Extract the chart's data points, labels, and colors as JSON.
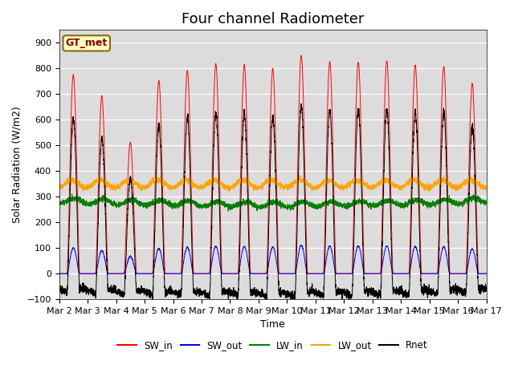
{
  "title": "Four channel Radiometer",
  "xlabel": "Time",
  "ylabel": "Solar Radiation (W/m2)",
  "label_box": "GT_met",
  "ylim": [
    -100,
    950
  ],
  "start_day": 2,
  "num_days": 15,
  "background_color": "#dcdcdc",
  "legend_entries": [
    "SW_in",
    "SW_out",
    "LW_in",
    "LW_out",
    "Rnet"
  ],
  "line_colors": [
    "red",
    "blue",
    "green",
    "orange",
    "black"
  ],
  "sw_in_peaks": [
    775,
    690,
    510,
    750,
    790,
    815,
    810,
    800,
    845,
    830,
    830,
    825,
    820,
    815,
    740
  ],
  "sw_out_scale": 0.13,
  "lw_in_base": 285,
  "lw_out_base": 350,
  "points_per_day": 288,
  "title_fontsize": 13,
  "axis_label_fontsize": 9,
  "tick_label_fontsize": 8
}
